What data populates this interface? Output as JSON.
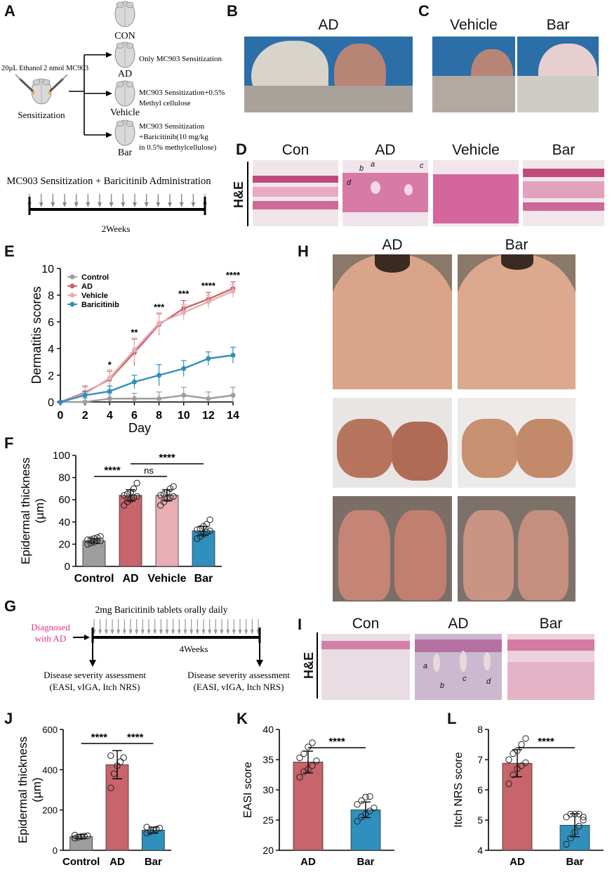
{
  "panels": {
    "A": {
      "label": "A",
      "groups": [
        "CON",
        "AD",
        "Vehicle",
        "Bar"
      ],
      "descriptions": [
        "Only MC903 Sensitization",
        "MC903 Sensitization+0.5%",
        "Methyl cellulose",
        "MC903 Sensitization",
        "+Baricitinib(10 mg/kg",
        "in 0.5% methylcellulose)"
      ],
      "syringe_left": "20µL Ethanol",
      "syringe_right": "2 nmol MC903",
      "sensitization": "Sensitization",
      "timeline_title": "MC903 Sensitization + Baricitinib Administration",
      "timeline_duration": "2Weeks"
    },
    "B": {
      "label": "B",
      "title": "AD"
    },
    "C": {
      "label": "C",
      "titles": [
        "Vehicle",
        "Bar"
      ]
    },
    "D": {
      "label": "D",
      "stain": "H&E",
      "titles": [
        "Con",
        "AD",
        "Vehicle",
        "Bar"
      ],
      "annotations": [
        "a",
        "b",
        "c",
        "d"
      ]
    },
    "E": {
      "label": "E"
    },
    "F": {
      "label": "F"
    },
    "G": {
      "label": "G",
      "diagnosed": "Diagnosed with AD",
      "diagnosed_line1": "Diagnosed",
      "diagnosed_line2": "with AD",
      "treatment": "2mg Baricitinib tablets orally daily",
      "duration": "4Weeks",
      "assessment_title": "Disease severity assessment",
      "assessment_items": "(EASI, vIGA, Itch NRS)"
    },
    "H": {
      "label": "H",
      "titles": [
        "AD",
        "Bar"
      ]
    },
    "I": {
      "label": "I",
      "stain": "H&E",
      "titles": [
        "Con",
        "AD",
        "Bar"
      ],
      "annotations": [
        "a",
        "b",
        "c",
        "d"
      ]
    },
    "J": {
      "label": "J"
    },
    "K": {
      "label": "K"
    },
    "L": {
      "label": "L"
    }
  },
  "colors": {
    "control": "#9e9e9e",
    "ad": "#c8646b",
    "vehicle": "#e8aeb3",
    "bar": "#2f8fbd",
    "diagnosed": "#e0338a"
  },
  "chart_data": [
    {
      "id": "E",
      "type": "line",
      "x": [
        0,
        2,
        4,
        6,
        8,
        10,
        12,
        14
      ],
      "xlabel": "Day",
      "ylabel": "Dermatitis scores",
      "xlim": [
        0,
        14
      ],
      "ylim": [
        0,
        10
      ],
      "xticks": [
        "0",
        "2",
        "4",
        "6",
        "8",
        "10",
        "12",
        "14"
      ],
      "yticks": [
        "0",
        "2",
        "4",
        "6",
        "8",
        "10"
      ],
      "legend_position": "top-left",
      "series": [
        {
          "name": "Control",
          "values": [
            0,
            0,
            0.25,
            0.25,
            0.25,
            0.5,
            0.25,
            0.5
          ],
          "errors": [
            0,
            0.3,
            0.4,
            0.4,
            0.5,
            0.6,
            0.5,
            0.6
          ],
          "color": "#9e9e9e"
        },
        {
          "name": "AD",
          "values": [
            0,
            0.7,
            1.7,
            3.7,
            5.8,
            7.0,
            7.7,
            8.5
          ],
          "errors": [
            0,
            0.5,
            0.6,
            1.0,
            0.8,
            0.6,
            0.5,
            0.5
          ],
          "color": "#c8646b"
        },
        {
          "name": "Vehicle",
          "values": [
            0,
            0.6,
            1.8,
            3.9,
            5.9,
            6.7,
            7.5,
            8.3
          ],
          "errors": [
            0,
            0.5,
            0.6,
            0.9,
            0.8,
            0.6,
            0.5,
            0.5
          ],
          "color": "#e8aeb3"
        },
        {
          "name": "Baricitinib",
          "values": [
            0,
            0.5,
            0.8,
            1.5,
            2.0,
            2.5,
            3.25,
            3.5
          ],
          "errors": [
            0,
            0.3,
            0.4,
            0.5,
            0.8,
            0.6,
            0.5,
            0.6
          ],
          "color": "#2f8fbd"
        }
      ],
      "significance": [
        "",
        "",
        "*",
        "**",
        "***",
        "***",
        "****",
        "****"
      ]
    },
    {
      "id": "F",
      "type": "bar",
      "categories": [
        "Control",
        "AD",
        "Vehicle",
        "Bar"
      ],
      "values": [
        23,
        64,
        64,
        32
      ],
      "errors": [
        2,
        5,
        5,
        4
      ],
      "ylabel": "Epidermal thickness (µm)",
      "ylabel_line1": "Epidermal thickness",
      "ylabel_line2": "(µm)",
      "ylim": [
        0,
        100
      ],
      "yticks": [
        "0",
        "20",
        "40",
        "60",
        "80",
        "100"
      ],
      "points": [
        [
          20,
          21,
          22,
          23,
          23,
          24,
          24,
          25,
          26,
          27
        ],
        [
          55,
          58,
          60,
          62,
          63,
          64,
          65,
          67,
          70,
          75
        ],
        [
          55,
          58,
          61,
          62,
          63,
          64,
          65,
          67,
          70,
          72
        ],
        [
          25,
          27,
          29,
          31,
          32,
          33,
          34,
          36,
          38,
          42
        ]
      ],
      "comparisons": [
        {
          "from": "Control",
          "to": "AD",
          "label": "****"
        },
        {
          "from": "AD",
          "to": "Vehicle",
          "label": "ns"
        },
        {
          "from": "AD",
          "to": "Bar",
          "label": "****"
        }
      ]
    },
    {
      "id": "J",
      "type": "bar",
      "categories": [
        "Control",
        "AD",
        "Bar"
      ],
      "values": [
        68,
        425,
        100
      ],
      "errors": [
        10,
        70,
        15
      ],
      "ylabel": "Epidermal thickness (µm)",
      "ylabel_line1": "Epidermal thickness",
      "ylabel_line2": "(µm)",
      "ylim": [
        0,
        600
      ],
      "yticks": [
        "0",
        "200",
        "400",
        "600"
      ],
      "points": [
        [
          60,
          65,
          68,
          70,
          72,
          75
        ],
        [
          310,
          380,
          420,
          440,
          460,
          470
        ],
        [
          85,
          92,
          100,
          105,
          110,
          115
        ]
      ],
      "comparisons": [
        {
          "from": "Control",
          "to": "AD",
          "label": "****"
        },
        {
          "from": "AD",
          "to": "Bar",
          "label": "****"
        }
      ]
    },
    {
      "id": "K",
      "type": "bar",
      "categories": [
        "AD",
        "Bar"
      ],
      "values": [
        34.6,
        26.7
      ],
      "errors": [
        1.8,
        1.3
      ],
      "ylabel": "EASI score",
      "ylim": [
        20,
        40
      ],
      "yticks": [
        "20",
        "25",
        "30",
        "35",
        "40"
      ],
      "points": [
        [
          32.1,
          33.0,
          33.4,
          34.0,
          34.8,
          35.3,
          36.0,
          37.1,
          37.8
        ],
        [
          24.8,
          25.5,
          26.0,
          26.5,
          27.0,
          27.6,
          28.2,
          28.8,
          28.9
        ]
      ],
      "comparisons": [
        {
          "from": "AD",
          "to": "Bar",
          "label": "****"
        }
      ]
    },
    {
      "id": "L",
      "type": "bar",
      "categories": [
        "AD",
        "Bar"
      ],
      "values": [
        6.88,
        4.83
      ],
      "errors": [
        0.45,
        0.38
      ],
      "ylabel": "Itch NRS  score",
      "ylim": [
        4,
        8
      ],
      "yticks": [
        "4",
        "5",
        "6",
        "7",
        "8"
      ],
      "points": [
        [
          6.2,
          6.5,
          6.7,
          6.8,
          6.9,
          7.0,
          7.2,
          7.3,
          7.5,
          7.7
        ],
        [
          4.2,
          4.4,
          4.6,
          4.8,
          5.0,
          5.1,
          5.2,
          5.2,
          5.2,
          5.1
        ]
      ],
      "comparisons": [
        {
          "from": "AD",
          "to": "Bar",
          "label": "****"
        }
      ]
    }
  ]
}
